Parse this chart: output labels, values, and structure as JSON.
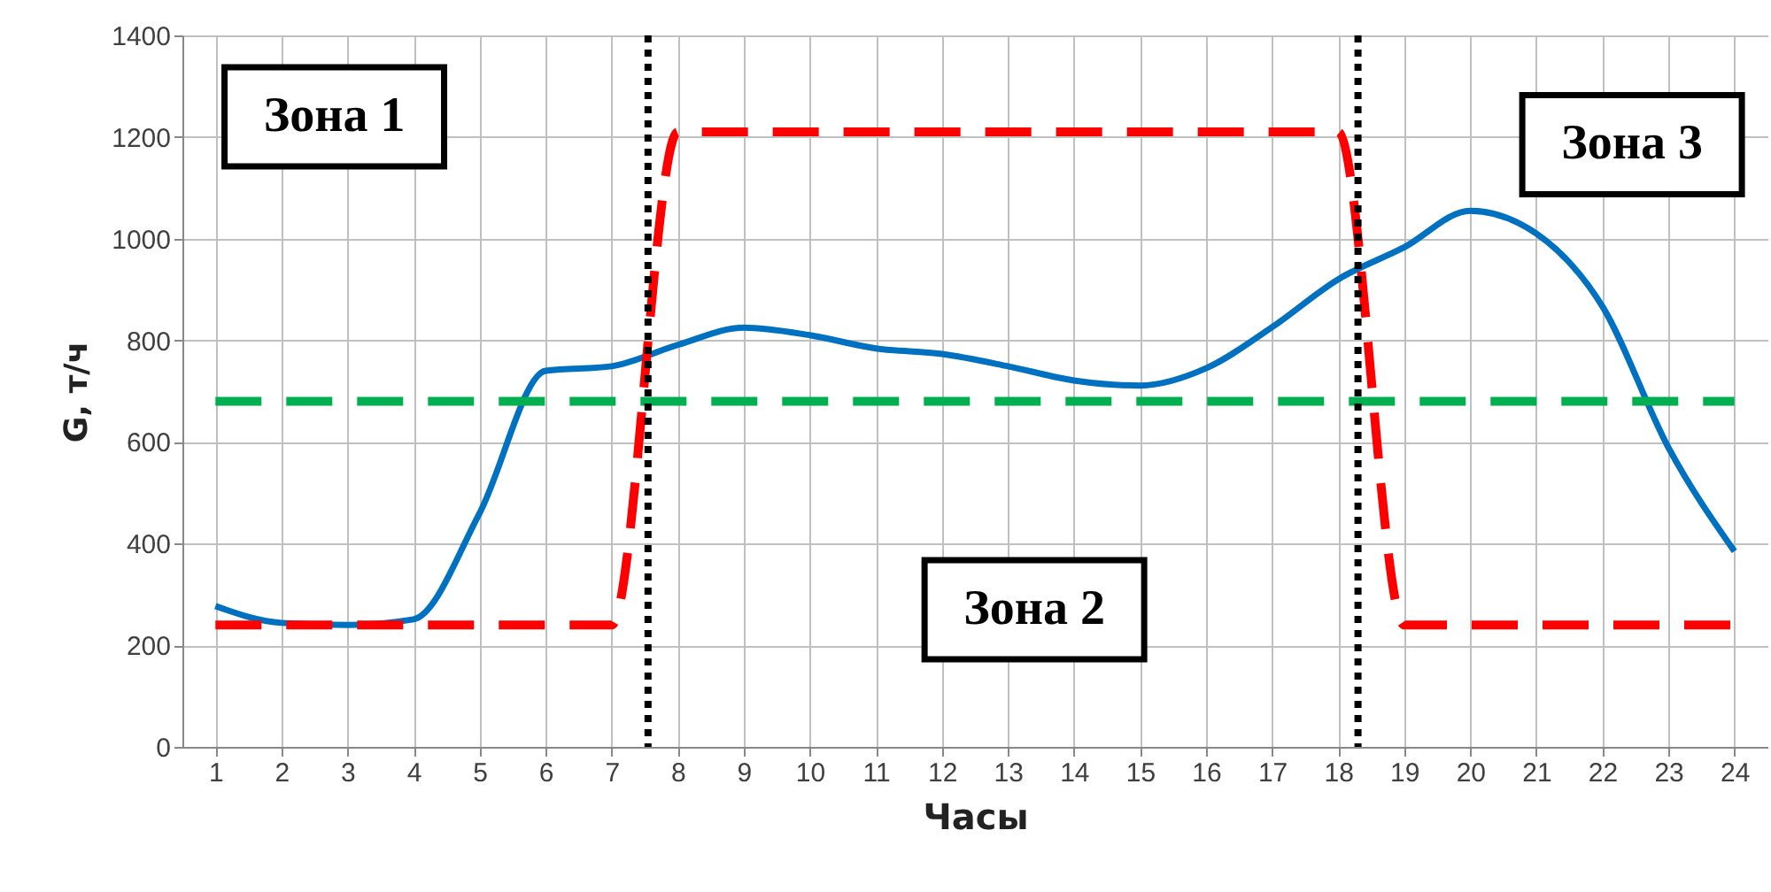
{
  "chart_data": {
    "type": "line",
    "xlabel": "Часы",
    "ylabel": "G, т/ч",
    "x": [
      1,
      2,
      3,
      4,
      5,
      6,
      7,
      8,
      9,
      10,
      11,
      12,
      13,
      14,
      15,
      16,
      17,
      18,
      19,
      20,
      21,
      22,
      23,
      24
    ],
    "xlim": [
      0.5,
      24.5
    ],
    "xticks": [
      1,
      2,
      3,
      4,
      5,
      6,
      7,
      8,
      9,
      10,
      11,
      12,
      13,
      14,
      15,
      16,
      17,
      18,
      19,
      20,
      21,
      22,
      23,
      24
    ],
    "ylim": [
      0,
      1400
    ],
    "yticks": [
      0,
      200,
      400,
      600,
      800,
      1000,
      1200,
      1400
    ],
    "grid": true,
    "series": [
      {
        "color": "#0070c0",
        "values": [
          277,
          244,
          240,
          251,
          460,
          740,
          749,
          791,
          825,
          810,
          784,
          773,
          749,
          721,
          711,
          745,
          826,
          920,
          983,
          1055,
          1010,
          867,
          589,
          385
        ]
      },
      {
        "color": "#ff0000",
        "line_style": "dashed",
        "values": [
          240,
          240,
          240,
          240,
          240,
          240,
          240,
          1210,
          1210,
          1210,
          1210,
          1210,
          1210,
          1210,
          1210,
          1210,
          1210,
          1210,
          240,
          240,
          240,
          240,
          240,
          240
        ]
      },
      {
        "color": "#00b050",
        "line_style": "dashed",
        "values": [
          680,
          680,
          680,
          680,
          680,
          680,
          680,
          680,
          680,
          680,
          680,
          680,
          680,
          680,
          680,
          680,
          680,
          680,
          680,
          680,
          680,
          680,
          680,
          680
        ]
      }
    ],
    "ref_lines": [
      {
        "axis": "x",
        "value": 7.55,
        "color": "#000000",
        "line_style": "dotted"
      },
      {
        "axis": "x",
        "value": 18.3,
        "color": "#000000",
        "line_style": "dotted"
      }
    ],
    "annotations": [
      "Зона 1",
      "Зона 2",
      "Зона 3"
    ]
  }
}
